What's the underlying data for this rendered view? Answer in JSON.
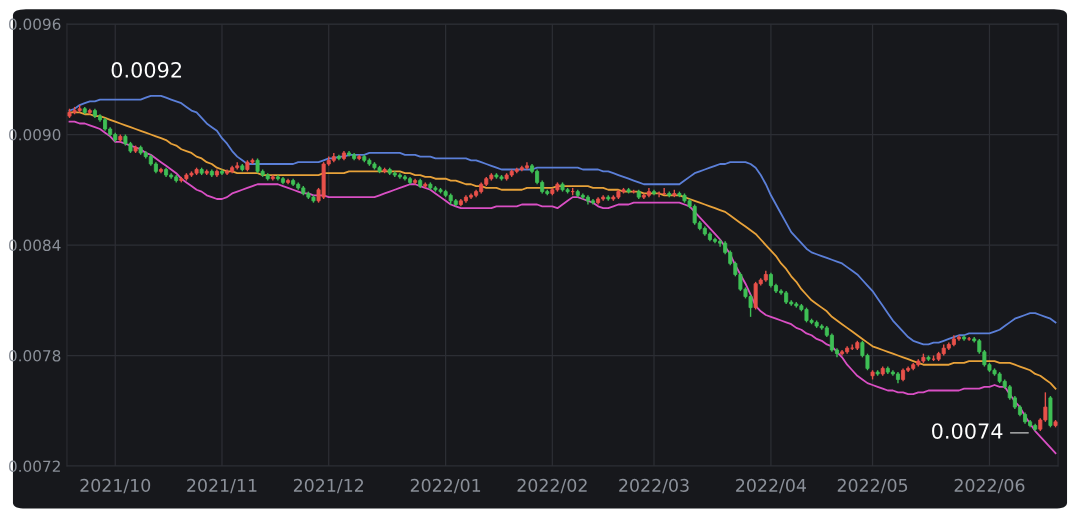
{
  "chart_data": {
    "type": "candlestick",
    "categories": [
      null,
      null,
      null,
      null,
      null,
      null,
      null,
      null,
      null,
      "2021/10",
      null,
      null,
      null,
      null,
      null,
      null,
      null,
      null,
      null,
      null,
      null,
      null,
      null,
      null,
      null,
      null,
      null,
      null,
      null,
      null,
      "2021/11",
      null,
      null,
      null,
      null,
      null,
      null,
      null,
      null,
      null,
      null,
      null,
      null,
      null,
      null,
      null,
      null,
      null,
      null,
      null,
      null,
      "2021/12",
      null,
      null,
      null,
      null,
      null,
      null,
      null,
      null,
      null,
      null,
      null,
      null,
      null,
      null,
      null,
      null,
      null,
      null,
      null,
      null,
      null,
      null,
      "2022/01",
      null,
      null,
      null,
      null,
      null,
      null,
      null,
      null,
      null,
      null,
      null,
      null,
      null,
      null,
      null,
      null,
      null,
      null,
      null,
      null,
      "2022/02",
      null,
      null,
      null,
      null,
      null,
      null,
      null,
      null,
      null,
      null,
      null,
      null,
      null,
      null,
      null,
      null,
      null,
      null,
      null,
      "2022/03",
      null,
      null,
      null,
      null,
      null,
      null,
      null,
      null,
      null,
      null,
      null,
      null,
      null,
      null,
      null,
      null,
      null,
      null,
      null,
      null,
      null,
      null,
      "2022/04",
      null,
      null,
      null,
      null,
      null,
      null,
      null,
      null,
      null,
      null,
      null,
      null,
      null,
      null,
      null,
      null,
      null,
      null,
      null,
      "2022/05",
      null,
      null,
      null,
      null,
      null,
      null,
      null,
      null,
      null,
      null,
      null,
      null,
      null,
      null,
      null,
      null,
      null,
      null,
      null,
      null,
      null,
      null,
      "2022/06",
      null,
      null,
      null,
      null,
      null,
      null,
      null,
      null,
      null,
      null,
      null,
      null,
      null
    ],
    "ohlc": [
      [
        0.0091,
        0.00914,
        0.00909,
        0.00912
      ],
      [
        0.00912,
        0.00915,
        0.00911,
        0.00913
      ],
      [
        0.00913,
        0.00916,
        0.00912,
        0.00914
      ],
      [
        0.00914,
        0.00915,
        0.00911,
        0.00912
      ],
      [
        0.00912,
        0.00914,
        0.00911,
        0.00913
      ],
      [
        0.00913,
        0.00914,
        0.00909,
        0.0091
      ],
      [
        0.0091,
        0.00911,
        0.00907,
        0.00908
      ],
      [
        0.00908,
        0.00909,
        0.00902,
        0.00903
      ],
      [
        0.00903,
        0.00904,
        0.00899,
        0.009
      ],
      [
        0.009,
        0.00901,
        0.00896,
        0.00897
      ],
      [
        0.00897,
        0.009,
        0.00896,
        0.00899
      ],
      [
        0.00899,
        0.009,
        0.00894,
        0.00895
      ],
      [
        0.00895,
        0.00896,
        0.0089,
        0.00891
      ],
      [
        0.00891,
        0.00894,
        0.0089,
        0.00893
      ],
      [
        0.00893,
        0.00894,
        0.00889,
        0.0089
      ],
      [
        0.0089,
        0.00891,
        0.00887,
        0.00888
      ],
      [
        0.00888,
        0.00889,
        0.00883,
        0.00884
      ],
      [
        0.00884,
        0.00885,
        0.00879,
        0.0088
      ],
      [
        0.0088,
        0.00882,
        0.00879,
        0.00881
      ],
      [
        0.00881,
        0.00882,
        0.00877,
        0.00878
      ],
      [
        0.00878,
        0.00879,
        0.00876,
        0.00877
      ],
      [
        0.00877,
        0.00878,
        0.00874,
        0.00875
      ],
      [
        0.00875,
        0.00877,
        0.00874,
        0.00876
      ],
      [
        0.00876,
        0.00879,
        0.00875,
        0.00878
      ],
      [
        0.00878,
        0.0088,
        0.00877,
        0.00879
      ],
      [
        0.00879,
        0.00882,
        0.00878,
        0.00881
      ],
      [
        0.00881,
        0.00882,
        0.00878,
        0.00879
      ],
      [
        0.00879,
        0.00881,
        0.00878,
        0.0088
      ],
      [
        0.0088,
        0.00881,
        0.00877,
        0.00878
      ],
      [
        0.00878,
        0.00881,
        0.00877,
        0.0088
      ],
      [
        0.0088,
        0.00881,
        0.00878,
        0.00879
      ],
      [
        0.00879,
        0.00881,
        0.00878,
        0.0088
      ],
      [
        0.0088,
        0.00883,
        0.00879,
        0.00882
      ],
      [
        0.00882,
        0.00885,
        0.00881,
        0.00883
      ],
      [
        0.00883,
        0.00884,
        0.0088,
        0.00881
      ],
      [
        0.00881,
        0.00886,
        0.0088,
        0.00885
      ],
      [
        0.00885,
        0.00887,
        0.00884,
        0.00886
      ],
      [
        0.00886,
        0.00887,
        0.00879,
        0.0088
      ],
      [
        0.0088,
        0.00881,
        0.00877,
        0.00878
      ],
      [
        0.00878,
        0.00879,
        0.00875,
        0.00876
      ],
      [
        0.00876,
        0.00878,
        0.00875,
        0.00877
      ],
      [
        0.00877,
        0.00878,
        0.00875,
        0.00876
      ],
      [
        0.00876,
        0.00877,
        0.00873,
        0.00874
      ],
      [
        0.00874,
        0.00876,
        0.00873,
        0.00875
      ],
      [
        0.00875,
        0.00876,
        0.00872,
        0.00873
      ],
      [
        0.00873,
        0.00874,
        0.0087,
        0.00871
      ],
      [
        0.00871,
        0.00872,
        0.00867,
        0.00868
      ],
      [
        0.00868,
        0.00869,
        0.00865,
        0.00866
      ],
      [
        0.00866,
        0.00867,
        0.00863,
        0.00864
      ],
      [
        0.00864,
        0.00871,
        0.00863,
        0.0087
      ],
      [
        0.00866,
        0.00885,
        0.00865,
        0.00884
      ],
      [
        0.00884,
        0.00888,
        0.00883,
        0.00886
      ],
      [
        0.00886,
        0.0089,
        0.00885,
        0.00888
      ],
      [
        0.00888,
        0.00889,
        0.00886,
        0.00887
      ],
      [
        0.00887,
        0.00891,
        0.00886,
        0.0089
      ],
      [
        0.0089,
        0.00891,
        0.00888,
        0.00889
      ],
      [
        0.00889,
        0.0089,
        0.00886,
        0.00887
      ],
      [
        0.00887,
        0.00889,
        0.00886,
        0.00888
      ],
      [
        0.00888,
        0.00889,
        0.00885,
        0.00886
      ],
      [
        0.00886,
        0.00887,
        0.00883,
        0.00884
      ],
      [
        0.00884,
        0.00885,
        0.00881,
        0.00882
      ],
      [
        0.00882,
        0.00883,
        0.00879,
        0.0088
      ],
      [
        0.0088,
        0.00882,
        0.00879,
        0.00881
      ],
      [
        0.00881,
        0.00882,
        0.00878,
        0.00879
      ],
      [
        0.00879,
        0.0088,
        0.00877,
        0.00878
      ],
      [
        0.00878,
        0.00879,
        0.00876,
        0.00877
      ],
      [
        0.00877,
        0.00878,
        0.00875,
        0.00876
      ],
      [
        0.00876,
        0.00877,
        0.00873,
        0.00874
      ],
      [
        0.00874,
        0.00876,
        0.00873,
        0.00875
      ],
      [
        0.00875,
        0.00876,
        0.00871,
        0.00872
      ],
      [
        0.00872,
        0.00874,
        0.00871,
        0.00873
      ],
      [
        0.00873,
        0.00874,
        0.0087,
        0.00871
      ],
      [
        0.00871,
        0.00872,
        0.00869,
        0.0087
      ],
      [
        0.0087,
        0.00871,
        0.00868,
        0.00869
      ],
      [
        0.00869,
        0.0087,
        0.00866,
        0.00867
      ],
      [
        0.00867,
        0.00868,
        0.00862,
        0.00864
      ],
      [
        0.00864,
        0.00865,
        0.00861,
        0.00862
      ],
      [
        0.00862,
        0.00865,
        0.00861,
        0.00864
      ],
      [
        0.00864,
        0.00867,
        0.00863,
        0.00866
      ],
      [
        0.00866,
        0.00868,
        0.00865,
        0.00867
      ],
      [
        0.00867,
        0.0087,
        0.00866,
        0.00869
      ],
      [
        0.00869,
        0.00874,
        0.00868,
        0.00873
      ],
      [
        0.00873,
        0.00877,
        0.00872,
        0.00876
      ],
      [
        0.00876,
        0.00879,
        0.00875,
        0.00878
      ],
      [
        0.00878,
        0.00879,
        0.00876,
        0.00877
      ],
      [
        0.00877,
        0.00878,
        0.00875,
        0.00876
      ],
      [
        0.00876,
        0.00879,
        0.00875,
        0.00878
      ],
      [
        0.00878,
        0.00881,
        0.00877,
        0.0088
      ],
      [
        0.0088,
        0.00882,
        0.00879,
        0.00881
      ],
      [
        0.00881,
        0.00883,
        0.0088,
        0.00882
      ],
      [
        0.00882,
        0.00885,
        0.00881,
        0.00883
      ],
      [
        0.00883,
        0.00884,
        0.00879,
        0.0088
      ],
      [
        0.0088,
        0.00881,
        0.00873,
        0.00874
      ],
      [
        0.00874,
        0.00875,
        0.00868,
        0.00869
      ],
      [
        0.00869,
        0.0087,
        0.00867,
        0.00868
      ],
      [
        0.00868,
        0.00871,
        0.00867,
        0.0087
      ],
      [
        0.0087,
        0.00874,
        0.00869,
        0.00873
      ],
      [
        0.00873,
        0.00874,
        0.00869,
        0.0087
      ],
      [
        0.0087,
        0.00871,
        0.00868,
        0.00869
      ],
      [
        0.00869,
        0.00871,
        0.00867,
        0.00869
      ],
      [
        0.00869,
        0.0087,
        0.00866,
        0.00867
      ],
      [
        0.00867,
        0.00868,
        0.00865,
        0.00866
      ],
      [
        0.00866,
        0.00867,
        0.00862,
        0.00864
      ],
      [
        0.00864,
        0.00865,
        0.00862,
        0.00863
      ],
      [
        0.00863,
        0.00866,
        0.00862,
        0.00865
      ],
      [
        0.00865,
        0.00867,
        0.00864,
        0.00866
      ],
      [
        0.00866,
        0.00867,
        0.00864,
        0.00865
      ],
      [
        0.00865,
        0.00867,
        0.00864,
        0.00866
      ],
      [
        0.00866,
        0.0087,
        0.00865,
        0.00869
      ],
      [
        0.00869,
        0.00871,
        0.00868,
        0.0087
      ],
      [
        0.0087,
        0.00871,
        0.00868,
        0.00869
      ],
      [
        0.00869,
        0.0087,
        0.00868,
        0.00869
      ],
      [
        0.00869,
        0.0087,
        0.00865,
        0.00866
      ],
      [
        0.00866,
        0.00868,
        0.00865,
        0.00867
      ],
      [
        0.00867,
        0.00871,
        0.00866,
        0.00869
      ],
      [
        0.00869,
        0.0087,
        0.00867,
        0.00868
      ],
      [
        0.00868,
        0.00869,
        0.00866,
        0.00868
      ],
      [
        0.00868,
        0.00871,
        0.00867,
        0.00868
      ],
      [
        0.00868,
        0.00869,
        0.00866,
        0.00867
      ],
      [
        0.00867,
        0.0087,
        0.00866,
        0.00868
      ],
      [
        0.00868,
        0.00869,
        0.00866,
        0.00867
      ],
      [
        0.00867,
        0.00868,
        0.00863,
        0.00864
      ],
      [
        0.00864,
        0.00865,
        0.0086,
        0.00861
      ],
      [
        0.00861,
        0.00862,
        0.00851,
        0.00852
      ],
      [
        0.00852,
        0.00853,
        0.00848,
        0.00849
      ],
      [
        0.00849,
        0.0085,
        0.00845,
        0.00846
      ],
      [
        0.00846,
        0.00847,
        0.00842,
        0.00843
      ],
      [
        0.00843,
        0.00844,
        0.00841,
        0.00842
      ],
      [
        0.00842,
        0.00843,
        0.00839,
        0.00841
      ],
      [
        0.00841,
        0.00842,
        0.00835,
        0.00836
      ],
      [
        0.00836,
        0.00837,
        0.00829,
        0.0083
      ],
      [
        0.0083,
        0.00831,
        0.00823,
        0.00824
      ],
      [
        0.00824,
        0.00825,
        0.00815,
        0.00816
      ],
      [
        0.00816,
        0.00817,
        0.00811,
        0.00812
      ],
      [
        0.00812,
        0.00813,
        0.00801,
        0.00806
      ],
      [
        0.00806,
        0.0082,
        0.00805,
        0.00819
      ],
      [
        0.00819,
        0.00822,
        0.00818,
        0.00821
      ],
      [
        0.00821,
        0.00826,
        0.0082,
        0.00824
      ],
      [
        0.00824,
        0.00825,
        0.00817,
        0.00818
      ],
      [
        0.00818,
        0.00819,
        0.00814,
        0.00815
      ],
      [
        0.00815,
        0.00816,
        0.00813,
        0.00814
      ],
      [
        0.00814,
        0.00815,
        0.00808,
        0.00809
      ],
      [
        0.00809,
        0.0081,
        0.00807,
        0.00808
      ],
      [
        0.00808,
        0.00809,
        0.00806,
        0.00807
      ],
      [
        0.00807,
        0.00808,
        0.00804,
        0.00805
      ],
      [
        0.00805,
        0.00806,
        0.00798,
        0.00799
      ],
      [
        0.00799,
        0.008,
        0.00797,
        0.00798
      ],
      [
        0.00798,
        0.00799,
        0.00795,
        0.00796
      ],
      [
        0.00796,
        0.00797,
        0.00794,
        0.00795
      ],
      [
        0.00795,
        0.00796,
        0.0079,
        0.00791
      ],
      [
        0.00791,
        0.00792,
        0.00782,
        0.00783
      ],
      [
        0.00783,
        0.00784,
        0.00779,
        0.00781
      ],
      [
        0.00781,
        0.00783,
        0.0078,
        0.00782
      ],
      [
        0.00782,
        0.00785,
        0.00781,
        0.00784
      ],
      [
        0.00784,
        0.00786,
        0.00783,
        0.00784
      ],
      [
        0.00784,
        0.00788,
        0.00783,
        0.00787
      ],
      [
        0.00787,
        0.00788,
        0.00779,
        0.0078
      ],
      [
        0.0078,
        0.00781,
        0.00772,
        0.00773
      ],
      [
        0.00769,
        0.00772,
        0.00767,
        0.00771
      ],
      [
        0.00771,
        0.00772,
        0.00769,
        0.0077
      ],
      [
        0.0077,
        0.00774,
        0.00769,
        0.00773
      ],
      [
        0.00773,
        0.00774,
        0.0077,
        0.00771
      ],
      [
        0.00771,
        0.00772,
        0.00769,
        0.0077
      ],
      [
        0.0077,
        0.00771,
        0.00765,
        0.00767
      ],
      [
        0.00767,
        0.00773,
        0.00766,
        0.00772
      ],
      [
        0.00772,
        0.00774,
        0.00771,
        0.00773
      ],
      [
        0.00773,
        0.00776,
        0.00772,
        0.00775
      ],
      [
        0.00775,
        0.00778,
        0.00774,
        0.00777
      ],
      [
        0.00777,
        0.00781,
        0.00776,
        0.00779
      ],
      [
        0.00779,
        0.0078,
        0.00777,
        0.00778
      ],
      [
        0.00778,
        0.0078,
        0.00777,
        0.00778
      ],
      [
        0.00778,
        0.00782,
        0.00777,
        0.00781
      ],
      [
        0.00781,
        0.00786,
        0.0078,
        0.00784
      ],
      [
        0.00784,
        0.00787,
        0.00783,
        0.00786
      ],
      [
        0.00786,
        0.00791,
        0.00785,
        0.00789
      ],
      [
        0.00789,
        0.00791,
        0.00788,
        0.0079
      ],
      [
        0.0079,
        0.00791,
        0.00788,
        0.00789
      ],
      [
        0.00789,
        0.0079,
        0.00788,
        0.00789
      ],
      [
        0.00789,
        0.0079,
        0.00787,
        0.00788
      ],
      [
        0.00788,
        0.00789,
        0.00781,
        0.00782
      ],
      [
        0.00782,
        0.00783,
        0.00774,
        0.00775
      ],
      [
        0.00775,
        0.00776,
        0.00771,
        0.00772
      ],
      [
        0.00772,
        0.00773,
        0.00769,
        0.0077
      ],
      [
        0.0077,
        0.00771,
        0.00765,
        0.00766
      ],
      [
        0.00766,
        0.00767,
        0.00762,
        0.00763
      ],
      [
        0.00763,
        0.00764,
        0.00756,
        0.00757
      ],
      [
        0.00757,
        0.00758,
        0.00751,
        0.00752
      ],
      [
        0.00752,
        0.00753,
        0.00747,
        0.00748
      ],
      [
        0.00748,
        0.00749,
        0.00743,
        0.00744
      ],
      [
        0.00744,
        0.00745,
        0.00741,
        0.00742
      ],
      [
        0.00742,
        0.00743,
        0.00739,
        0.0074
      ],
      [
        0.0074,
        0.00746,
        0.00739,
        0.00745
      ],
      [
        0.00745,
        0.0076,
        0.00744,
        0.00752
      ],
      [
        0.00757,
        0.00758,
        0.00741,
        0.00742
      ],
      [
        0.00742,
        0.00745,
        0.00741,
        0.00744
      ]
    ],
    "colors": [
      "#e8514a",
      "#e8514a",
      "#e8514a",
      "#3fbf55",
      "#e8514a",
      "#3fbf55",
      "#3fbf55",
      "#3fbf55",
      "#3fbf55",
      "#3fbf55",
      "#e8514a",
      "#3fbf55",
      "#3fbf55",
      "#e8514a",
      "#3fbf55",
      "#3fbf55",
      "#3fbf55",
      "#3fbf55",
      "#e8514a",
      "#3fbf55",
      "#3fbf55",
      "#3fbf55",
      "#e8514a",
      "#e8514a",
      "#e8514a",
      "#e8514a",
      "#3fbf55",
      "#e8514a",
      "#3fbf55",
      "#e8514a",
      "#3fbf55",
      "#e8514a",
      "#e8514a",
      "#e8514a",
      "#3fbf55",
      "#e8514a",
      "#e8514a",
      "#3fbf55",
      "#3fbf55",
      "#3fbf55",
      "#e8514a",
      "#3fbf55",
      "#3fbf55",
      "#e8514a",
      "#3fbf55",
      "#3fbf55",
      "#3fbf55",
      "#3fbf55",
      "#3fbf55",
      "#e8514a",
      "#e8514a",
      "#e8514a",
      "#e8514a",
      "#3fbf55",
      "#e8514a",
      "#3fbf55",
      "#3fbf55",
      "#e8514a",
      "#3fbf55",
      "#3fbf55",
      "#3fbf55",
      "#3fbf55",
      "#e8514a",
      "#3fbf55",
      "#3fbf55",
      "#3fbf55",
      "#3fbf55",
      "#3fbf55",
      "#e8514a",
      "#3fbf55",
      "#e8514a",
      "#3fbf55",
      "#3fbf55",
      "#3fbf55",
      "#3fbf55",
      "#3fbf55",
      "#3fbf55",
      "#e8514a",
      "#e8514a",
      "#e8514a",
      "#e8514a",
      "#e8514a",
      "#e8514a",
      "#e8514a",
      "#3fbf55",
      "#3fbf55",
      "#e8514a",
      "#e8514a",
      "#e8514a",
      "#e8514a",
      "#e8514a",
      "#3fbf55",
      "#3fbf55",
      "#3fbf55",
      "#3fbf55",
      "#e8514a",
      "#e8514a",
      "#3fbf55",
      "#3fbf55",
      "#e8514a",
      "#3fbf55",
      "#3fbf55",
      "#3fbf55",
      "#3fbf55",
      "#e8514a",
      "#e8514a",
      "#3fbf55",
      "#e8514a",
      "#e8514a",
      "#e8514a",
      "#3fbf55",
      "#e8514a",
      "#3fbf55",
      "#e8514a",
      "#e8514a",
      "#3fbf55",
      "#e8514a",
      "#e8514a",
      "#3fbf55",
      "#e8514a",
      "#3fbf55",
      "#3fbf55",
      "#3fbf55",
      "#3fbf55",
      "#3fbf55",
      "#3fbf55",
      "#3fbf55",
      "#3fbf55",
      "#3fbf55",
      "#3fbf55",
      "#3fbf55",
      "#3fbf55",
      "#3fbf55",
      "#3fbf55",
      "#3fbf55",
      "#e8514a",
      "#e8514a",
      "#e8514a",
      "#3fbf55",
      "#3fbf55",
      "#3fbf55",
      "#3fbf55",
      "#3fbf55",
      "#3fbf55",
      "#3fbf55",
      "#3fbf55",
      "#3fbf55",
      "#3fbf55",
      "#3fbf55",
      "#3fbf55",
      "#3fbf55",
      "#3fbf55",
      "#e8514a",
      "#e8514a",
      "#e8514a",
      "#e8514a",
      "#3fbf55",
      "#3fbf55",
      "#e8514a",
      "#3fbf55",
      "#e8514a",
      "#3fbf55",
      "#3fbf55",
      "#3fbf55",
      "#e8514a",
      "#e8514a",
      "#e8514a",
      "#e8514a",
      "#e8514a",
      "#3fbf55",
      "#e8514a",
      "#e8514a",
      "#e8514a",
      "#e8514a",
      "#e8514a",
      "#e8514a",
      "#3fbf55",
      "#e8514a",
      "#3fbf55",
      "#3fbf55",
      "#3fbf55",
      "#3fbf55",
      "#3fbf55",
      "#3fbf55",
      "#3fbf55",
      "#3fbf55",
      "#3fbf55",
      "#3fbf55",
      "#3fbf55",
      "#3fbf55",
      "#3fbf55",
      "#e8514a",
      "#e8514a",
      "#3fbf55",
      "#e8514a"
    ],
    "series": [
      {
        "type": "line",
        "color": "#5b7fd8",
        "values": [
          0.00913,
          0.00914,
          0.00916,
          0.00917,
          0.00918,
          0.00918,
          0.00919,
          0.00919,
          0.00919,
          0.00919,
          0.00919,
          0.00919,
          0.00919,
          0.00919,
          0.00919,
          0.0092,
          0.00921,
          0.00921,
          0.00921,
          0.0092,
          0.00919,
          0.00918,
          0.00917,
          0.00915,
          0.00913,
          0.00912,
          0.00909,
          0.00906,
          0.00904,
          0.00902,
          0.00898,
          0.00895,
          0.00891,
          0.00888,
          0.00886,
          0.00884,
          0.00884,
          0.00884,
          0.00884,
          0.00884,
          0.00884,
          0.00884,
          0.00884,
          0.00884,
          0.00884,
          0.00885,
          0.00885,
          0.00885,
          0.00885,
          0.00885,
          0.00886,
          0.00887,
          0.00887,
          0.00888,
          0.00888,
          0.00889,
          0.00889,
          0.00889,
          0.00889,
          0.0089,
          0.0089,
          0.0089,
          0.0089,
          0.0089,
          0.0089,
          0.0089,
          0.00889,
          0.00889,
          0.00889,
          0.00888,
          0.00888,
          0.00888,
          0.00887,
          0.00887,
          0.00887,
          0.00887,
          0.00887,
          0.00887,
          0.00887,
          0.00886,
          0.00886,
          0.00885,
          0.00884,
          0.00883,
          0.00882,
          0.00881,
          0.00881,
          0.00881,
          0.00881,
          0.00881,
          0.00881,
          0.00881,
          0.00882,
          0.00882,
          0.00882,
          0.00882,
          0.00882,
          0.00882,
          0.00882,
          0.00882,
          0.00882,
          0.00881,
          0.00881,
          0.00881,
          0.00881,
          0.0088,
          0.0088,
          0.00879,
          0.00878,
          0.00877,
          0.00876,
          0.00875,
          0.00874,
          0.00873,
          0.00873,
          0.00873,
          0.00873,
          0.00873,
          0.00873,
          0.00873,
          0.00873,
          0.00875,
          0.00877,
          0.00879,
          0.0088,
          0.00881,
          0.00882,
          0.00883,
          0.00884,
          0.00884,
          0.00885,
          0.00885,
          0.00885,
          0.00885,
          0.00884,
          0.00882,
          0.00878,
          0.00873,
          0.00867,
          0.00862,
          0.00857,
          0.00852,
          0.00847,
          0.00844,
          0.00841,
          0.00838,
          0.00836,
          0.00835,
          0.00834,
          0.00833,
          0.00832,
          0.00831,
          0.0083,
          0.00828,
          0.00826,
          0.00824,
          0.00821,
          0.00818,
          0.00815,
          0.00811,
          0.00807,
          0.00803,
          0.00799,
          0.00796,
          0.00793,
          0.0079,
          0.00788,
          0.00787,
          0.00786,
          0.00786,
          0.00787,
          0.00787,
          0.00788,
          0.00789,
          0.0079,
          0.00791,
          0.00791,
          0.00792,
          0.00792,
          0.00792,
          0.00792,
          0.00792,
          0.00793,
          0.00794,
          0.00796,
          0.00798,
          0.008,
          0.00801,
          0.00802,
          0.00803,
          0.00803,
          0.00802,
          0.00801,
          0.008,
          0.00798
        ]
      },
      {
        "type": "line",
        "color": "#e8a23a",
        "values": [
          0.00912,
          0.00912,
          0.00912,
          0.00911,
          0.00911,
          0.0091,
          0.0091,
          0.00909,
          0.00908,
          0.00907,
          0.00906,
          0.00905,
          0.00904,
          0.00903,
          0.00902,
          0.00901,
          0.009,
          0.00899,
          0.00898,
          0.00897,
          0.00895,
          0.00894,
          0.00892,
          0.00891,
          0.0089,
          0.00888,
          0.00887,
          0.00885,
          0.00884,
          0.00882,
          0.00881,
          0.0088,
          0.0088,
          0.00879,
          0.00879,
          0.00879,
          0.00879,
          0.00879,
          0.00878,
          0.00878,
          0.00878,
          0.00878,
          0.00878,
          0.00878,
          0.00878,
          0.00878,
          0.00878,
          0.00878,
          0.00878,
          0.00878,
          0.00879,
          0.00879,
          0.00879,
          0.00879,
          0.00879,
          0.0088,
          0.0088,
          0.0088,
          0.0088,
          0.0088,
          0.0088,
          0.0088,
          0.0088,
          0.0088,
          0.0088,
          0.0088,
          0.00879,
          0.00879,
          0.00878,
          0.00878,
          0.00877,
          0.00877,
          0.00876,
          0.00876,
          0.00876,
          0.00875,
          0.00875,
          0.00874,
          0.00873,
          0.00873,
          0.00872,
          0.00872,
          0.00871,
          0.00871,
          0.00871,
          0.0087,
          0.0087,
          0.0087,
          0.0087,
          0.0087,
          0.00871,
          0.00871,
          0.00871,
          0.00871,
          0.00871,
          0.00871,
          0.00872,
          0.00872,
          0.00872,
          0.00872,
          0.00872,
          0.00872,
          0.00872,
          0.00871,
          0.00871,
          0.00871,
          0.0087,
          0.0087,
          0.0087,
          0.00869,
          0.00869,
          0.00869,
          0.00869,
          0.00868,
          0.00868,
          0.00868,
          0.00868,
          0.00867,
          0.00867,
          0.00867,
          0.00867,
          0.00866,
          0.00865,
          0.00864,
          0.00863,
          0.00862,
          0.00861,
          0.0086,
          0.00859,
          0.00858,
          0.00856,
          0.00854,
          0.00852,
          0.0085,
          0.00848,
          0.00846,
          0.00843,
          0.0084,
          0.00837,
          0.00834,
          0.0083,
          0.00827,
          0.00823,
          0.0082,
          0.00816,
          0.00813,
          0.0081,
          0.00808,
          0.00806,
          0.00804,
          0.00801,
          0.00799,
          0.00797,
          0.00795,
          0.00793,
          0.00791,
          0.00789,
          0.00787,
          0.00785,
          0.00784,
          0.00783,
          0.00782,
          0.00781,
          0.0078,
          0.00779,
          0.00778,
          0.00777,
          0.00776,
          0.00775,
          0.00775,
          0.00775,
          0.00775,
          0.00775,
          0.00775,
          0.00776,
          0.00776,
          0.00776,
          0.00777,
          0.00777,
          0.00777,
          0.00777,
          0.00777,
          0.00777,
          0.00776,
          0.00776,
          0.00776,
          0.00775,
          0.00774,
          0.00773,
          0.00772,
          0.0077,
          0.00769,
          0.00767,
          0.00765,
          0.00762
        ]
      },
      {
        "type": "line",
        "color": "#d94fc4",
        "values": [
          0.00907,
          0.00907,
          0.00906,
          0.00906,
          0.00905,
          0.00904,
          0.00903,
          0.00901,
          0.00899,
          0.00896,
          0.00896,
          0.00895,
          0.00894,
          0.00893,
          0.00892,
          0.0089,
          0.00889,
          0.00887,
          0.00885,
          0.00883,
          0.00881,
          0.00879,
          0.00876,
          0.00874,
          0.00872,
          0.0087,
          0.00869,
          0.00867,
          0.00866,
          0.00865,
          0.00865,
          0.00866,
          0.00868,
          0.00869,
          0.0087,
          0.00871,
          0.00872,
          0.00873,
          0.00873,
          0.00873,
          0.00873,
          0.00873,
          0.00872,
          0.00871,
          0.0087,
          0.00869,
          0.00868,
          0.00868,
          0.00867,
          0.00867,
          0.00867,
          0.00866,
          0.00866,
          0.00866,
          0.00866,
          0.00866,
          0.00866,
          0.00866,
          0.00866,
          0.00866,
          0.00866,
          0.00867,
          0.00868,
          0.00869,
          0.0087,
          0.00871,
          0.00872,
          0.00873,
          0.00873,
          0.00872,
          0.00871,
          0.0087,
          0.00868,
          0.00866,
          0.00864,
          0.00862,
          0.00861,
          0.0086,
          0.0086,
          0.0086,
          0.0086,
          0.0086,
          0.0086,
          0.0086,
          0.00861,
          0.00861,
          0.00861,
          0.00861,
          0.00861,
          0.00862,
          0.00862,
          0.00862,
          0.00862,
          0.00861,
          0.00861,
          0.00861,
          0.0086,
          0.00862,
          0.00864,
          0.00866,
          0.00866,
          0.00865,
          0.00864,
          0.00863,
          0.00861,
          0.0086,
          0.0086,
          0.00861,
          0.00862,
          0.00862,
          0.00862,
          0.00863,
          0.00863,
          0.00863,
          0.00863,
          0.00863,
          0.00863,
          0.00863,
          0.00863,
          0.00863,
          0.00863,
          0.00862,
          0.00861,
          0.00858,
          0.00855,
          0.00852,
          0.00849,
          0.00846,
          0.00843,
          0.00839,
          0.00835,
          0.00829,
          0.00824,
          0.00819,
          0.00813,
          0.00807,
          0.00804,
          0.00802,
          0.00801,
          0.008,
          0.00799,
          0.00798,
          0.00797,
          0.00795,
          0.00794,
          0.00792,
          0.00791,
          0.00789,
          0.00788,
          0.00786,
          0.00785,
          0.00782,
          0.00779,
          0.00775,
          0.00772,
          0.00769,
          0.00767,
          0.00765,
          0.00764,
          0.00763,
          0.00762,
          0.00761,
          0.00761,
          0.0076,
          0.0076,
          0.00759,
          0.00759,
          0.0076,
          0.0076,
          0.00761,
          0.00761,
          0.00761,
          0.00761,
          0.00761,
          0.00761,
          0.00761,
          0.00762,
          0.00762,
          0.00762,
          0.00762,
          0.00763,
          0.00763,
          0.00764,
          0.00763,
          0.00763,
          0.00759,
          0.00755,
          0.00752,
          0.00747,
          0.00743,
          0.00739,
          0.00736,
          0.00733,
          0.0073,
          0.00727
        ]
      }
    ],
    "ylim": [
      0.0072,
      0.0096
    ],
    "yticks": [
      0.0072,
      0.0078,
      0.0084,
      {
        "value": 0.009,
        "label": "0.0090"
      },
      0.0096
    ],
    "grid": true,
    "annotations": [
      {
        "text": "0.0092",
        "y": 0.0092
      },
      "0.0074"
    ]
  }
}
